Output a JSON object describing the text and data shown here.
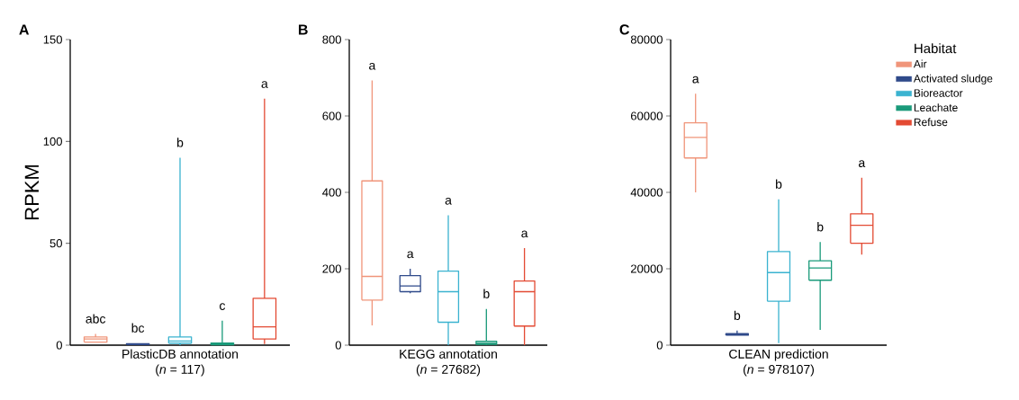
{
  "chart_data": [
    {
      "type": "box",
      "title": "A",
      "ylabel": "RPKM",
      "xlabel": "PlasticDB annotation",
      "categories": [
        null,
        null,
        null,
        null,
        null
      ],
      "ylim": [
        0,
        150
      ],
      "yticks": [
        0,
        50,
        100,
        150
      ],
      "legend": false,
      "series": [
        {
          "color": "#f0957a",
          "boxes": [
            {
              "low": 1.5,
              "q1": 1.5,
              "median": 3,
              "q3": 4,
              "high": 5.5
            },
            null,
            null,
            null,
            null
          ]
        },
        {
          "color": "#2f4a8a",
          "boxes": [
            null,
            {
              "low": 0.1,
              "q1": 0.3,
              "median": 0.5,
              "q3": 0.7,
              "high": 1
            },
            null,
            null,
            null
          ]
        },
        {
          "color": "#3bb3d0",
          "boxes": [
            null,
            null,
            {
              "low": 0,
              "q1": 1,
              "median": 2,
              "q3": 4,
              "high": 92
            },
            null,
            null
          ]
        },
        {
          "color": "#1a9a7a",
          "boxes": [
            null,
            null,
            null,
            {
              "low": 0,
              "q1": 0.2,
              "median": 0.5,
              "q3": 1,
              "high": 12
            },
            null
          ]
        },
        {
          "color": "#e34a33",
          "boxes": [
            null,
            null,
            null,
            null,
            {
              "low": 0.5,
              "q1": 3,
              "median": 9,
              "q3": 23,
              "high": 121
            }
          ]
        }
      ],
      "annotations": [
        "abc",
        "bc",
        "b",
        "c",
        "a",
        "(*n* = 117)"
      ]
    },
    {
      "type": "box",
      "title": "B",
      "xlabel": "KEGG annotation",
      "categories": [
        null,
        null,
        null,
        null,
        null
      ],
      "ylim": [
        0,
        800
      ],
      "yticks": [
        0,
        200,
        400,
        600,
        800
      ],
      "legend": false,
      "series": [
        {
          "color": "#f0957a",
          "boxes": [
            {
              "low": 52,
              "q1": 118,
              "median": 180,
              "q3": 430,
              "high": 693
            },
            null,
            null,
            null,
            null
          ]
        },
        {
          "color": "#2f4a8a",
          "boxes": [
            null,
            {
              "low": 136,
              "q1": 140,
              "median": 155,
              "q3": 182,
              "high": 200
            },
            null,
            null,
            null
          ]
        },
        {
          "color": "#3bb3d0",
          "boxes": [
            null,
            null,
            {
              "low": 0,
              "q1": 60,
              "median": 140,
              "q3": 194,
              "high": 340
            },
            null,
            null
          ]
        },
        {
          "color": "#1a9a7a",
          "boxes": [
            null,
            null,
            null,
            {
              "low": 0,
              "q1": 2,
              "median": 5,
              "q3": 10,
              "high": 95
            },
            null
          ]
        },
        {
          "color": "#e34a33",
          "boxes": [
            null,
            null,
            null,
            null,
            {
              "low": 0,
              "q1": 50,
              "median": 140,
              "q3": 168,
              "high": 254
            }
          ]
        }
      ],
      "annotations": [
        "a",
        "a",
        "a",
        "b",
        "a",
        "(*n* = 27682)"
      ]
    },
    {
      "type": "box",
      "title": "C",
      "xlabel": "CLEAN prediction",
      "categories": [
        null,
        null,
        null,
        null,
        null
      ],
      "ylim": [
        0,
        80000
      ],
      "yticks": [
        0,
        20000,
        40000,
        60000,
        80000
      ],
      "legend": "top right",
      "legend_title": "Habitat",
      "series": [
        {
          "name": "Air",
          "color": "#f0957a",
          "boxes": [
            {
              "low": 40000,
              "q1": 49000,
              "median": 54400,
              "q3": 58200,
              "high": 65800
            },
            null,
            null,
            null,
            null
          ]
        },
        {
          "name": "Activated sludge",
          "color": "#2f4a8a",
          "boxes": [
            null,
            {
              "low": 2500,
              "q1": 2600,
              "median": 2800,
              "q3": 3000,
              "high": 3800
            },
            null,
            null,
            null
          ]
        },
        {
          "name": "Bioreactor",
          "color": "#3bb3d0",
          "boxes": [
            null,
            null,
            {
              "low": 500,
              "q1": 11500,
              "median": 19000,
              "q3": 24500,
              "high": 38200
            },
            null,
            null
          ]
        },
        {
          "name": "Leachate",
          "color": "#1a9a7a",
          "boxes": [
            null,
            null,
            null,
            {
              "low": 4000,
              "q1": 17000,
              "median": 20200,
              "q3": 22100,
              "high": 27000
            },
            null
          ]
        },
        {
          "name": "Refuse",
          "color": "#e34a33",
          "boxes": [
            null,
            null,
            null,
            null,
            {
              "low": 23700,
              "q1": 26700,
              "median": 31400,
              "q3": 34400,
              "high": 43800
            }
          ]
        }
      ],
      "annotations": [
        "a",
        "b",
        "b",
        "b",
        "a",
        "(*n* = 978107)"
      ]
    }
  ]
}
